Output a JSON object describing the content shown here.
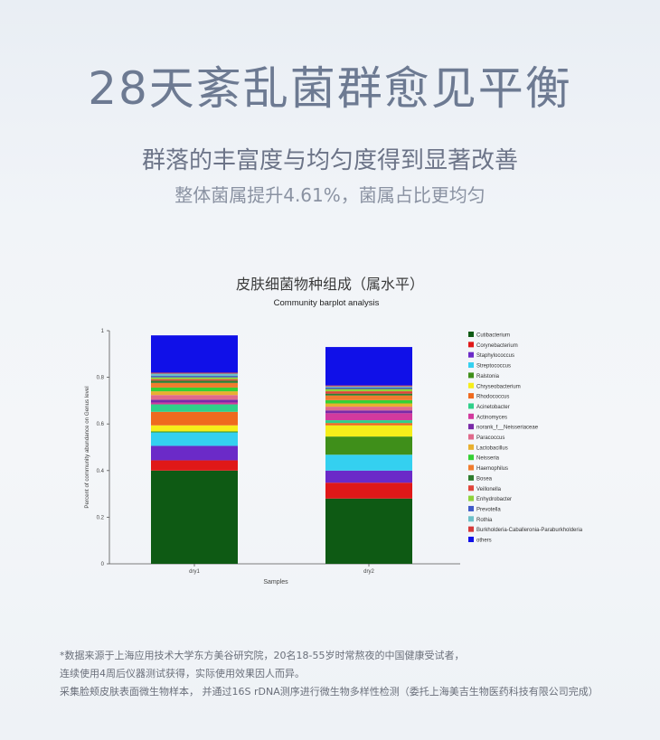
{
  "header": {
    "title": "28天紊乱菌群愈见平衡",
    "subtitle": "群落的丰富度与均匀度得到显著改善",
    "subtitle2": "整体菌属提升4.61%，菌属占比更均匀"
  },
  "chart_heading": "皮肤细菌物种组成（属水平）",
  "chart_data": {
    "type": "bar",
    "stacked": true,
    "title": "Community barplot analysis",
    "xlabel": "Samples",
    "ylabel": "Percent of community abundance on Genus level",
    "ylim": [
      0,
      1
    ],
    "yticks": [
      "0",
      "0.2",
      "0.4",
      "0.6",
      "0.8",
      "1"
    ],
    "categories": [
      "dry1",
      "dry2"
    ],
    "legend_position": "right",
    "series": [
      {
        "name": "others",
        "color": "#1010e8",
        "values": [
          0.16,
          0.165
        ]
      },
      {
        "name": "Burkholderia-Caballeronia-Paraburkholderia",
        "color": "#d63a3a",
        "values": [
          0.004,
          0.004
        ]
      },
      {
        "name": "Rothia",
        "color": "#6cc0c8",
        "values": [
          0.01,
          0.005
        ]
      },
      {
        "name": "Prevotella",
        "color": "#3f59c8",
        "values": [
          0.006,
          0.006
        ]
      },
      {
        "name": "Enhydrobacter",
        "color": "#8ed33c",
        "values": [
          0.008,
          0.01
        ]
      },
      {
        "name": "Veillonella",
        "color": "#e0453a",
        "values": [
          0.006,
          0.01
        ]
      },
      {
        "name": "Bosea",
        "color": "#2e7d2e",
        "values": [
          0.01,
          0.008
        ]
      },
      {
        "name": "Haemophilus",
        "color": "#f07c2e",
        "values": [
          0.02,
          0.02
        ]
      },
      {
        "name": "Neisseria",
        "color": "#35d035",
        "values": [
          0.016,
          0.014
        ]
      },
      {
        "name": "Lactobacillus",
        "color": "#e8b030",
        "values": [
          0.016,
          0.014
        ]
      },
      {
        "name": "Paracoccus",
        "color": "#e06a8c",
        "values": [
          0.02,
          0.016
        ]
      },
      {
        "name": "norank_f__Neisseriaceae",
        "color": "#7a2aa8",
        "values": [
          0.012,
          0.012
        ]
      },
      {
        "name": "Actinomyces",
        "color": "#d23a9e",
        "values": [
          0.008,
          0.03
        ]
      },
      {
        "name": "Acinetobacter",
        "color": "#2fd08a",
        "values": [
          0.032,
          0.012
        ]
      },
      {
        "name": "Rhodococcus",
        "color": "#ef6a1e",
        "values": [
          0.058,
          0.01
        ]
      },
      {
        "name": "Chryseobacterium",
        "color": "#f6ee1a",
        "values": [
          0.026,
          0.048
        ]
      },
      {
        "name": "Ralstonia",
        "color": "#3f8f1a",
        "values": [
          0.004,
          0.078
        ]
      },
      {
        "name": "Streptococcus",
        "color": "#34d0f0",
        "values": [
          0.058,
          0.068
        ]
      },
      {
        "name": "Staphylococcus",
        "color": "#6b2ac8",
        "values": [
          0.062,
          0.052
        ]
      },
      {
        "name": "Corynebacterium",
        "color": "#e01818",
        "values": [
          0.044,
          0.068
        ]
      },
      {
        "name": "Cutibacterium",
        "color": "#0e5a14",
        "values": [
          0.4,
          0.28
        ]
      }
    ]
  },
  "footnotes": [
    "*数据来源于上海应用技术大学东方美谷研究院，20名18-55岁时常熬夜的中国健康受试者，",
    "连续使用4周后仪器测试获得，实际使用效果因人而异。",
    "采集脸颊皮肤表面微生物样本，  并通过16S rDNA测序进行微生物多样性检测（委托上海美吉生物医药科技有限公司完成）"
  ]
}
